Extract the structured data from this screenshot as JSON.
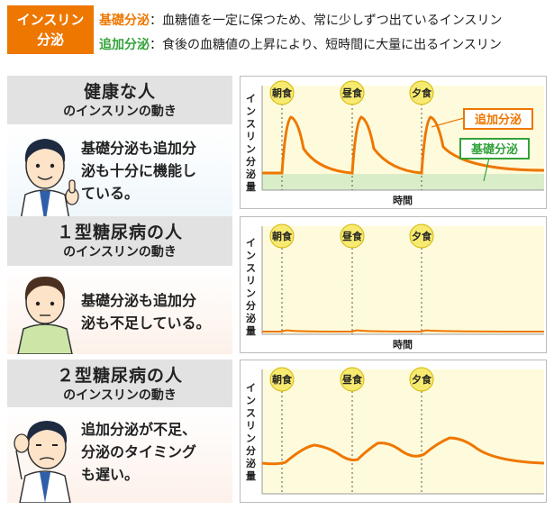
{
  "header": {
    "badge": [
      "インスリン",
      "分泌"
    ],
    "basal_key": "基礎分泌",
    "basal_desc": "：血糖値を一定に保つため、常に少しずつ出ているインスリン",
    "bolus_key": "追加分泌",
    "bolus_desc": "：食後の血糖値の上昇により、短時間に大量に出るインスリン"
  },
  "colors": {
    "orange": "#ee7700",
    "green": "#33a23a",
    "meal_yellow": "#f7ea70",
    "chart_bg": "#fefbdc",
    "basal_band": "#d9edc8"
  },
  "sections": [
    {
      "title": "健康な人",
      "subtitle": "のインスリンの動き",
      "note": [
        "基礎分泌も追加分",
        "泌も十分に機能し",
        "ている。"
      ],
      "person": "smiling-man-thumbs-up"
    },
    {
      "title": "１型糖尿病の人",
      "subtitle": "のインスリンの動き",
      "note": [
        "基礎分泌も追加分",
        "泌も不足している。"
      ],
      "person": "worried-man"
    },
    {
      "title": "２型糖尿病の人",
      "subtitle": "のインスリンの動き",
      "note": [
        "追加分泌が不足、",
        "分泌のタイミング",
        "も遅い。"
      ],
      "person": "troubled-man-hand-on-head"
    }
  ],
  "chart_data": [
    {
      "type": "line",
      "ylabel": "インスリン分泌量",
      "xlabel": "時間",
      "meals": [
        "朝食",
        "昼食",
        "夕食"
      ],
      "labels": {
        "bolus": "追加分泌",
        "basal": "基礎分泌"
      }
    },
    {
      "type": "line",
      "ylabel": "インスリン分泌量",
      "xlabel": "時間",
      "meals": [
        "朝食",
        "昼食",
        "夕食"
      ]
    },
    {
      "type": "line",
      "ylabel": "インスリン分泌量",
      "meals": [
        "朝食",
        "昼食",
        "夕食"
      ]
    }
  ]
}
